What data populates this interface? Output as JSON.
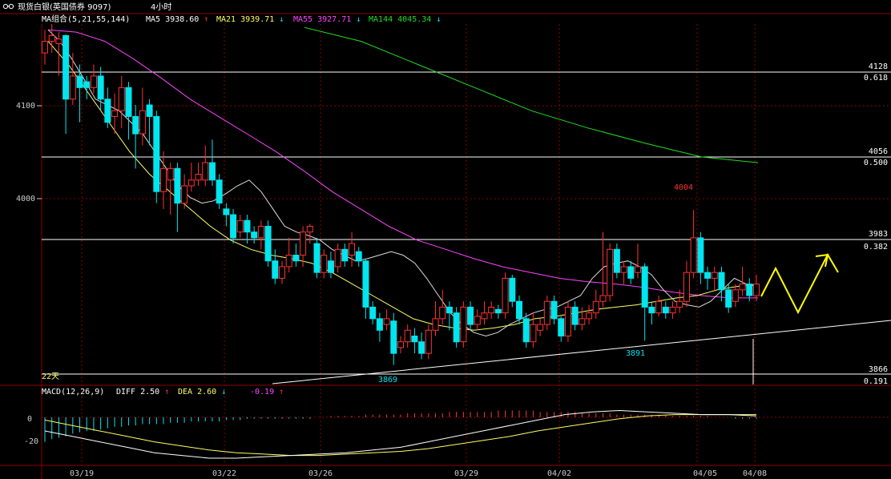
{
  "title_bar": {
    "icon": "glasses-icon",
    "title": "现货白银(英国债券 9097)",
    "period": "4小时"
  },
  "colors": {
    "background": "#000000",
    "up": "#ff3333",
    "down": "#00e5ee",
    "ma5": "#ffffff",
    "ma21": "#ffff66",
    "ma55": "#ff44ff",
    "ma144": "#22dd22",
    "grid": "#8b0000",
    "hline": "#ffffff",
    "annotation": "#ffff00"
  },
  "ma_legend": {
    "group": "MA组合(5,21,55,144)",
    "items": [
      {
        "label": "MA5",
        "value": "3938.60",
        "arrow": "↑"
      },
      {
        "label": "MA21",
        "value": "3939.71",
        "arrow": "↓"
      },
      {
        "label": "MA55",
        "value": "3927.71",
        "arrow": "↓"
      },
      {
        "label": "MA144",
        "value": "4045.34",
        "arrow": "↓"
      }
    ]
  },
  "macd_legend": {
    "label": "MACD(12,26,9)",
    "diff": "DIFF  2.50",
    "diff_arrow": "↑",
    "dea": "DEA  2.60",
    "dea_arrow": "↓",
    "macd": "-0.19",
    "macd_arrow": "↑"
  },
  "chart_data": [
    {
      "type": "candlestick",
      "y_ticks": [
        "4100",
        "4000"
      ],
      "ylim": [
        3860,
        4165
      ],
      "x_ticks": [
        "03/19",
        "03/22",
        "03/26",
        "03/29",
        "04/02",
        "04/05",
        "04/08"
      ],
      "fib_levels": [
        {
          "price": "4128",
          "ratio": "0.618"
        },
        {
          "price": "4056",
          "ratio": "0.500"
        },
        {
          "price": "3983",
          "ratio": "0.382"
        },
        {
          "price": "3866",
          "ratio": "0.191"
        }
      ],
      "annotations": {
        "high": "4004",
        "low_a": "3869",
        "low_b": "3891",
        "bars_label": "22天"
      },
      "candles": [
        [
          4140,
          4150,
          4160,
          4130
        ],
        [
          4150,
          4155,
          4165,
          4140
        ],
        [
          4148,
          4152,
          4158,
          4120
        ],
        [
          4155,
          4100,
          4156,
          4070
        ],
        [
          4100,
          4120,
          4140,
          4095
        ],
        [
          4120,
          4110,
          4130,
          4080
        ],
        [
          4115,
          4110,
          4120,
          4100
        ],
        [
          4110,
          4120,
          4130,
          4105
        ],
        [
          4120,
          4100,
          4128,
          4090
        ],
        [
          4100,
          4080,
          4110,
          4075
        ],
        [
          4085,
          4090,
          4105,
          4070
        ],
        [
          4090,
          4110,
          4120,
          4075
        ],
        [
          4110,
          4085,
          4115,
          4065
        ],
        [
          4085,
          4070,
          4095,
          4040
        ],
        [
          4070,
          4090,
          4110,
          4060
        ],
        [
          4095,
          4085,
          4100,
          4060
        ],
        [
          4085,
          4020,
          4090,
          4010
        ],
        [
          4020,
          4040,
          4055,
          4005
        ],
        [
          4030,
          4040,
          4045,
          4000
        ],
        [
          4040,
          4010,
          4045,
          3985
        ],
        [
          4010,
          4025,
          4035,
          4005
        ],
        [
          4025,
          4030,
          4045,
          4020
        ],
        [
          4030,
          4035,
          4045,
          4025
        ],
        [
          4030,
          4045,
          4060,
          4025
        ],
        [
          4045,
          4030,
          4065,
          4025
        ],
        [
          4030,
          4010,
          4035,
          4005
        ],
        [
          4005,
          4000,
          4010,
          3990
        ],
        [
          4000,
          3980,
          4005,
          3975
        ],
        [
          3985,
          3995,
          4000,
          3980
        ],
        [
          3995,
          3985,
          4000,
          3975
        ],
        [
          3985,
          3980,
          3990,
          3975
        ],
        [
          3980,
          3990,
          3995,
          3970
        ],
        [
          3990,
          3960,
          3995,
          3955
        ],
        [
          3960,
          3945,
          3970,
          3940
        ],
        [
          3945,
          3955,
          3960,
          3940
        ],
        [
          3955,
          3965,
          3980,
          3950
        ],
        [
          3965,
          3960,
          3975,
          3955
        ],
        [
          3965,
          3985,
          3990,
          3955
        ],
        [
          3985,
          3990,
          3992,
          3975
        ],
        [
          3975,
          3950,
          3980,
          3945
        ],
        [
          3950,
          3965,
          3970,
          3945
        ],
        [
          3960,
          3950,
          3968,
          3945
        ],
        [
          3955,
          3970,
          3975,
          3950
        ],
        [
          3970,
          3960,
          3975,
          3955
        ],
        [
          3965,
          3975,
          3985,
          3955
        ],
        [
          3968,
          3960,
          3972,
          3955
        ],
        [
          3960,
          3920,
          3962,
          3910
        ],
        [
          3920,
          3910,
          3925,
          3905
        ],
        [
          3910,
          3900,
          3915,
          3890
        ],
        [
          3905,
          3910,
          3918,
          3900
        ],
        [
          3908,
          3880,
          3915,
          3870
        ],
        [
          3885,
          3890,
          3895,
          3880
        ],
        [
          3890,
          3900,
          3905,
          3885
        ],
        [
          3895,
          3890,
          3902,
          3880
        ],
        [
          3890,
          3880,
          3898,
          3875
        ],
        [
          3880,
          3900,
          3905,
          3875
        ],
        [
          3900,
          3910,
          3925,
          3895
        ],
        [
          3910,
          3920,
          3935,
          3905
        ],
        [
          3920,
          3915,
          3925,
          3900
        ],
        [
          3915,
          3890,
          3920,
          3885
        ],
        [
          3890,
          3920,
          3925,
          3885
        ],
        [
          3920,
          3905,
          3925,
          3900
        ],
        [
          3905,
          3912,
          3918,
          3900
        ],
        [
          3910,
          3915,
          3925,
          3905
        ],
        [
          3915,
          3920,
          3925,
          3910
        ],
        [
          3918,
          3915,
          3922,
          3910
        ],
        [
          3915,
          3945,
          3950,
          3910
        ],
        [
          3945,
          3925,
          3948,
          3920
        ],
        [
          3925,
          3910,
          3930,
          3905
        ],
        [
          3910,
          3890,
          3915,
          3885
        ],
        [
          3890,
          3905,
          3915,
          3885
        ],
        [
          3900,
          3905,
          3910,
          3895
        ],
        [
          3905,
          3925,
          3930,
          3900
        ],
        [
          3925,
          3910,
          3930,
          3905
        ],
        [
          3910,
          3895,
          3912,
          3890
        ],
        [
          3895,
          3920,
          3925,
          3890
        ],
        [
          3920,
          3905,
          3925,
          3900
        ],
        [
          3905,
          3910,
          3920,
          3900
        ],
        [
          3910,
          3915,
          3922,
          3905
        ],
        [
          3915,
          3925,
          3935,
          3910
        ],
        [
          3925,
          3930,
          3985,
          3920
        ],
        [
          3930,
          3970,
          3975,
          3925
        ],
        [
          3970,
          3950,
          3975,
          3945
        ],
        [
          3950,
          3955,
          3960,
          3940
        ],
        [
          3955,
          3945,
          3960,
          3940
        ],
        [
          3950,
          3955,
          3975,
          3945
        ],
        [
          3955,
          3920,
          3958,
          3891
        ],
        [
          3920,
          3915,
          3925,
          3905
        ],
        [
          3915,
          3925,
          3930,
          3912
        ],
        [
          3920,
          3915,
          3925,
          3910
        ],
        [
          3915,
          3920,
          3925,
          3910
        ],
        [
          3920,
          3925,
          3935,
          3915
        ],
        [
          3925,
          3950,
          3960,
          3920
        ],
        [
          3950,
          3980,
          4004,
          3945
        ],
        [
          3980,
          3950,
          3985,
          3940
        ],
        [
          3950,
          3945,
          3955,
          3935
        ],
        [
          3945,
          3950,
          3955,
          3935
        ],
        [
          3950,
          3935,
          3955,
          3925
        ],
        [
          3935,
          3920,
          3940,
          3915
        ],
        [
          3925,
          3935,
          3940,
          3920
        ],
        [
          3935,
          3940,
          3955,
          3930
        ],
        [
          3940,
          3930,
          3945,
          3925
        ],
        [
          3930,
          3940,
          3948,
          3925
        ]
      ],
      "ma5": [
        4160,
        4150,
        4135,
        4118,
        4100,
        4095,
        4090,
        4080,
        4070,
        4055,
        4040,
        4025,
        4015,
        4010,
        4012,
        4018,
        4025,
        4030,
        4020,
        4005,
        3990,
        3985,
        3982,
        3978,
        3970,
        3965,
        3960,
        3962,
        3965,
        3968,
        3965,
        3958,
        3945,
        3930,
        3915,
        3905,
        3898,
        3895,
        3898,
        3905,
        3910,
        3915,
        3918,
        3920,
        3925,
        3930,
        3945,
        3955,
        3958,
        3960,
        3955,
        3948,
        3935,
        3925,
        3922,
        3920,
        3925,
        3935,
        3945,
        3940,
        3938
      ],
      "ma21": [
        4150,
        4130,
        4105,
        4080,
        4055,
        4035,
        4020,
        4005,
        3990,
        3978,
        3970,
        3965,
        3962,
        3958,
        3950,
        3940,
        3930,
        3920,
        3910,
        3905,
        3902,
        3900,
        3902,
        3905,
        3910,
        3912,
        3915,
        3918,
        3920,
        3922,
        3925,
        3928,
        3930,
        3935,
        3938,
        3940
      ],
      "ma55": [
        4160,
        4158,
        4150,
        4135,
        4118,
        4100,
        4085,
        4070,
        4055,
        4038,
        4020,
        4005,
        3990,
        3978,
        3970,
        3962,
        3955,
        3950,
        3945,
        3942,
        3940,
        3937,
        3933,
        3930,
        3928,
        3928
      ],
      "ma144": [
        4162,
        4150,
        4130,
        4110,
        4090,
        4075,
        4062,
        4050,
        4045
      ],
      "macd": {
        "y_ticks": [
          "0",
          "-20"
        ],
        "histogram": [
          -18,
          -16,
          -15,
          -14,
          -12,
          -11,
          -10,
          -10,
          -9,
          -8,
          -7,
          -7,
          -6,
          -6,
          -5,
          -5,
          -5,
          -5,
          -4,
          -4,
          -4,
          -3,
          -3,
          -3,
          -3,
          -3,
          -2,
          -2,
          -2,
          -1,
          -1,
          -1,
          -1,
          -1,
          -1,
          -1,
          -1,
          -1,
          -1,
          0,
          0,
          1,
          1,
          1,
          1,
          1,
          2,
          2,
          2,
          2,
          2,
          2,
          3,
          3,
          3,
          3,
          3,
          3,
          4,
          4,
          4,
          4,
          4,
          4,
          4,
          5,
          5,
          5,
          5,
          5,
          5,
          4,
          4,
          4,
          4,
          4,
          4,
          3,
          3,
          3,
          3,
          3,
          2,
          2,
          2,
          2,
          2,
          2,
          2,
          2,
          1,
          1,
          1,
          1,
          1,
          1,
          0,
          0,
          0,
          -1,
          -1,
          -1,
          -1
        ],
        "diff": [
          -10,
          -14,
          -18,
          -22,
          -26,
          -28,
          -30,
          -30,
          -29,
          -28,
          -27,
          -26,
          -24,
          -22,
          -18,
          -14,
          -10,
          -6,
          -2,
          2,
          4,
          5,
          4,
          3,
          2,
          2,
          1
        ],
        "dea": [
          -2,
          -6,
          -10,
          -14,
          -18,
          -21,
          -24,
          -26,
          -27,
          -28,
          -28,
          -27,
          -26,
          -25,
          -23,
          -20,
          -17,
          -14,
          -10,
          -7,
          -4,
          -1,
          1,
          2,
          2,
          2,
          2
        ]
      }
    }
  ]
}
